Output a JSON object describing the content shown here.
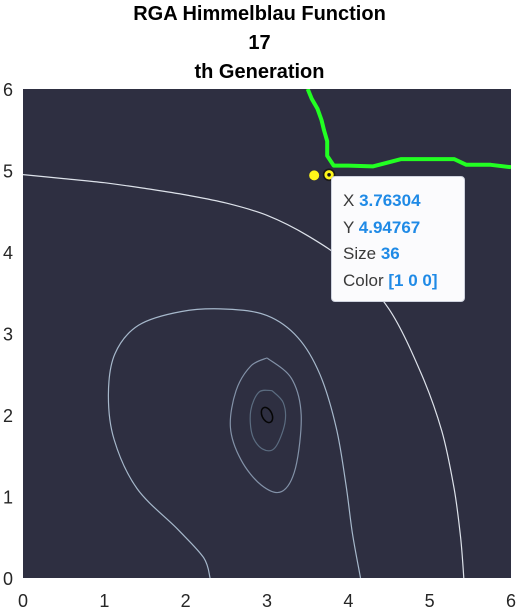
{
  "chart_data": {
    "type": "contour",
    "title_lines": [
      "RGA Himmelblau Function",
      "17",
      "th Generation"
    ],
    "xlim": [
      0,
      6
    ],
    "ylim": [
      0,
      6
    ],
    "x_ticks": [
      "0",
      "1",
      "2",
      "3",
      "4",
      "5",
      "6"
    ],
    "y_ticks": [
      "0",
      "1",
      "2",
      "3",
      "4",
      "5",
      "6"
    ],
    "grid": false,
    "background_color": "#2e2f41",
    "minimum_marker": {
      "x": 3,
      "y": 2
    },
    "contours": [
      {
        "color": "#5b6c80",
        "points": [
          [
            3.06,
            2.3
          ],
          [
            3.2,
            2.15
          ],
          [
            3.22,
            1.9
          ],
          [
            3.1,
            1.6
          ],
          [
            2.95,
            1.58
          ],
          [
            2.82,
            1.75
          ],
          [
            2.8,
            2.05
          ],
          [
            2.9,
            2.28
          ],
          [
            3.06,
            2.3
          ]
        ]
      },
      {
        "color": "#8392a8",
        "points": [
          [
            3.0,
            2.7
          ],
          [
            3.3,
            2.45
          ],
          [
            3.42,
            2.0
          ],
          [
            3.35,
            1.35
          ],
          [
            3.18,
            1.06
          ],
          [
            2.93,
            1.14
          ],
          [
            2.68,
            1.45
          ],
          [
            2.55,
            1.85
          ],
          [
            2.62,
            2.3
          ],
          [
            2.8,
            2.6
          ],
          [
            3.0,
            2.7
          ]
        ]
      },
      {
        "color": "#a6b8cb",
        "points": [
          [
            2.3,
            0.0
          ],
          [
            2.22,
            0.25
          ],
          [
            1.9,
            0.6
          ],
          [
            1.4,
            1.1
          ],
          [
            1.12,
            1.7
          ],
          [
            1.05,
            2.25
          ],
          [
            1.13,
            2.75
          ],
          [
            1.42,
            3.1
          ],
          [
            1.95,
            3.27
          ],
          [
            2.5,
            3.3
          ],
          [
            3.0,
            3.22
          ],
          [
            3.38,
            2.95
          ],
          [
            3.65,
            2.5
          ],
          [
            3.85,
            1.85
          ],
          [
            3.97,
            1.15
          ],
          [
            4.05,
            0.55
          ],
          [
            4.15,
            0.0
          ]
        ]
      },
      {
        "color": "#dde2ea",
        "points": [
          [
            0.0,
            4.95
          ],
          [
            0.5,
            4.9
          ],
          [
            1.0,
            4.85
          ],
          [
            1.5,
            4.78
          ],
          [
            2.0,
            4.7
          ],
          [
            2.5,
            4.6
          ],
          [
            3.0,
            4.45
          ],
          [
            3.5,
            4.2
          ],
          [
            4.0,
            3.85
          ],
          [
            4.5,
            3.3
          ],
          [
            4.9,
            2.5
          ],
          [
            5.15,
            1.8
          ],
          [
            5.3,
            1.1
          ],
          [
            5.38,
            0.5
          ],
          [
            5.42,
            0.0
          ]
        ]
      }
    ],
    "boundary": {
      "color": "#22ff22",
      "points": [
        [
          3.5,
          6.0
        ],
        [
          3.55,
          5.88
        ],
        [
          3.62,
          5.76
        ],
        [
          3.67,
          5.62
        ],
        [
          3.7,
          5.5
        ],
        [
          3.74,
          5.36
        ],
        [
          3.74,
          5.18
        ],
        [
          3.82,
          5.06
        ],
        [
          4.0,
          5.06
        ],
        [
          4.3,
          5.05
        ],
        [
          4.65,
          5.14
        ],
        [
          5.0,
          5.14
        ],
        [
          5.3,
          5.14
        ],
        [
          5.45,
          5.07
        ],
        [
          5.75,
          5.07
        ],
        [
          6.0,
          5.04
        ]
      ]
    },
    "points": [
      {
        "x": 3.58,
        "y": 4.94,
        "color": "#fff71a"
      },
      {
        "x": 3.76304,
        "y": 4.94767,
        "color": "#fff71a",
        "selected": true
      }
    ],
    "datatip": {
      "x_label": "X",
      "x_value": "3.76304",
      "y_label": "Y",
      "y_value": "4.94767",
      "size_label": "Size",
      "size_value": "36",
      "color_label": "Color",
      "color_value": "[1 0 0]"
    }
  }
}
